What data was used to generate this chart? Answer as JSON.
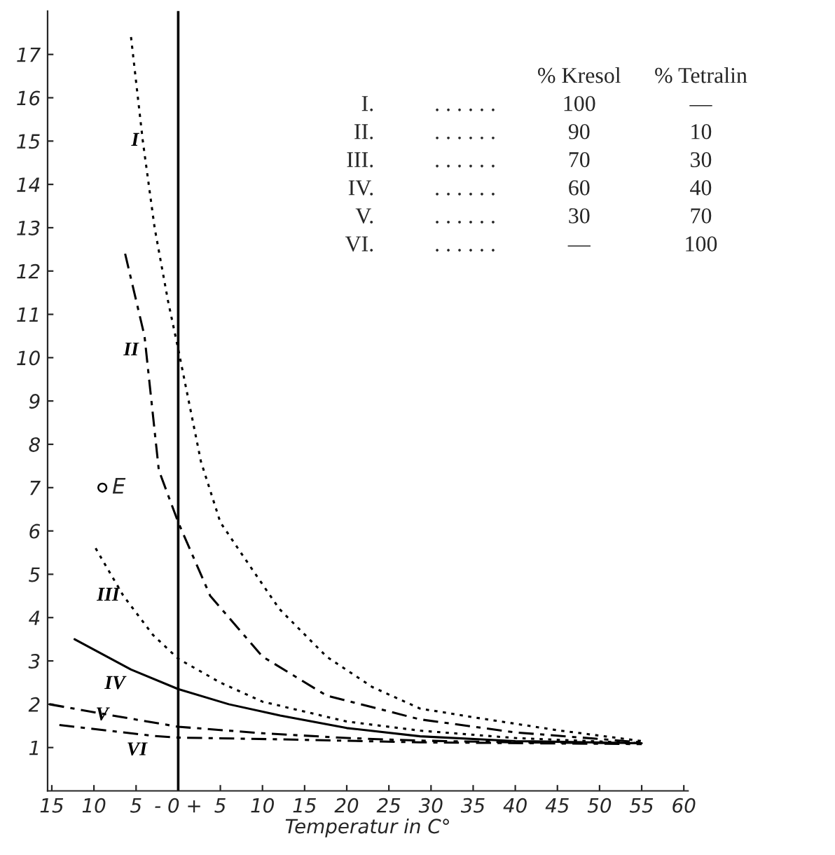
{
  "chart_data": {
    "type": "line",
    "xlabel": "Temperatur in C°",
    "xlim": [
      -15.5,
      60.5
    ],
    "ylim": [
      0,
      18
    ],
    "xticks": [
      {
        "value": -15,
        "label": "15"
      },
      {
        "value": -10,
        "label": "10"
      },
      {
        "value": -5,
        "label": "5"
      },
      {
        "value": 0,
        "label": "- 0 +"
      },
      5,
      10,
      15,
      20,
      25,
      30,
      35,
      40,
      45,
      50,
      55,
      60
    ],
    "yticks": [
      1,
      2,
      3,
      4,
      5,
      6,
      7,
      8,
      9,
      10,
      11,
      12,
      13,
      14,
      15,
      16,
      17
    ],
    "grid": false,
    "legend": false,
    "ref_lines": [
      {
        "axis": "x",
        "value": 0,
        "color": "#000000",
        "line_style": "solid"
      }
    ],
    "series": [
      {
        "name": "I",
        "color": "#000000",
        "line_style": "dotted",
        "x": [
          -5.6,
          -4.2,
          -2.8,
          -1.2,
          0,
          2.7,
          5,
          7.6,
          12,
          17.6,
          23,
          28.7,
          35,
          45,
          55
        ],
        "values": [
          17.4,
          15,
          13,
          11.3,
          10.2,
          7.6,
          6.2,
          5.45,
          4.2,
          3.1,
          2.4,
          1.9,
          1.7,
          1.4,
          1.15
        ]
      },
      {
        "name": "II",
        "color": "#000000",
        "line_style": "dashed",
        "x": [
          -6.3,
          -4,
          -2.3,
          0,
          3.8,
          10,
          17.6,
          28.7,
          40,
          55
        ],
        "values": [
          12.4,
          10.5,
          7.4,
          6.2,
          4.5,
          3.1,
          2.2,
          1.65,
          1.35,
          1.12
        ]
      },
      {
        "name": "III",
        "color": "#000000",
        "line_style": "dotted",
        "x": [
          -9.8,
          -6.5,
          -3,
          0,
          5,
          10,
          20,
          28.7,
          40,
          55
        ],
        "values": [
          5.6,
          4.5,
          3.6,
          3.05,
          2.5,
          2.06,
          1.6,
          1.39,
          1.22,
          1.1
        ]
      },
      {
        "name": "IV",
        "color": "#000000",
        "line_style": "solid",
        "x": [
          -12.3,
          -5.6,
          0,
          6,
          12.1,
          20,
          28.7,
          40,
          55
        ],
        "values": [
          3.5,
          2.8,
          2.35,
          2.0,
          1.74,
          1.45,
          1.26,
          1.15,
          1.1
        ]
      },
      {
        "name": "V",
        "color": "#000000",
        "line_style": "dashed",
        "x": [
          -15.3,
          -7.8,
          0,
          10,
          20,
          28.7,
          40,
          55
        ],
        "values": [
          2.0,
          1.74,
          1.48,
          1.33,
          1.22,
          1.16,
          1.12,
          1.1
        ]
      },
      {
        "name": "VI",
        "color": "#000000",
        "line_style": "dashed",
        "x": [
          -14.1,
          -3,
          0,
          12,
          28.7,
          55
        ],
        "values": [
          1.52,
          1.27,
          1.23,
          1.19,
          1.12,
          1.08
        ]
      },
      {
        "name": "E",
        "type": "scatter",
        "marker": "circle",
        "color": "#000000",
        "x": [
          -9
        ],
        "values": [
          7
        ]
      }
    ],
    "annotations": [
      "\t\t% Kresol\t% Tetralin",
      "I.\t. . . . . .\t100\t—",
      "II.\t. . . . . .\t90\t10",
      "III.\t. . . . . .\t70\t30",
      "IV.\t. . . . . .\t60\t40",
      "V.\t. . . . . .\t30\t70",
      "VI.\t. . . . . .\t—\t100"
    ]
  }
}
